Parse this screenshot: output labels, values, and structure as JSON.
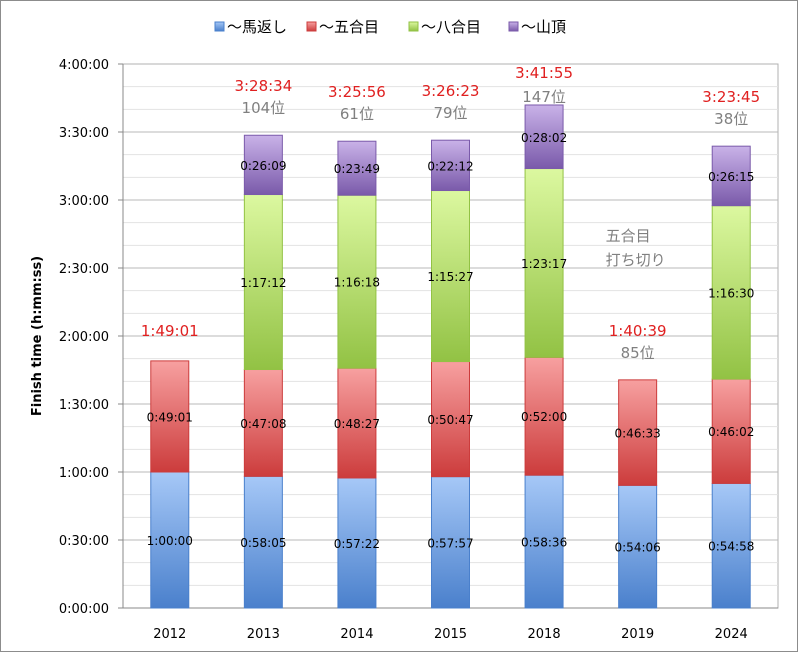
{
  "chart_data": {
    "type": "bar",
    "stacked": true,
    "ylabel": "Finish time (h:mm:ss)",
    "xlabel": "",
    "ylim_seconds": [
      0,
      14400
    ],
    "y_ticks": [
      "0:00:00",
      "0:30:00",
      "1:00:00",
      "1:30:00",
      "2:00:00",
      "2:30:00",
      "3:00:00",
      "3:30:00",
      "4:00:00"
    ],
    "grid": "major every 30 min, minor every 10 min",
    "legend_position": "top",
    "categories": [
      "2012",
      "2013",
      "2014",
      "2015",
      "2018",
      "2019",
      "2024"
    ],
    "series": [
      {
        "name": "～馬返し",
        "color": "#6f9fe0",
        "labels": [
          "1:00:00",
          "0:58:05",
          "0:57:22",
          "0:57:57",
          "0:58:36",
          "0:54:06",
          "0:54:58"
        ]
      },
      {
        "name": "～五合目",
        "color": "#e86a6a",
        "labels": [
          "0:49:01",
          "0:47:08",
          "0:48:27",
          "0:50:47",
          "0:52:00",
          "0:46:33",
          "0:46:02"
        ]
      },
      {
        "name": "～八合目",
        "color": "#bfe67a",
        "labels": [
          null,
          "1:17:12",
          "1:16:18",
          "1:15:27",
          "1:23:17",
          null,
          "1:16:30"
        ]
      },
      {
        "name": "～山頂",
        "color": "#a58ad0",
        "labels": [
          null,
          "0:26:09",
          "0:23:49",
          "0:22:12",
          "0:28:02",
          null,
          "0:26:15"
        ]
      }
    ],
    "totals": [
      "1:49:01",
      "3:28:34",
      "3:25:56",
      "3:26:23",
      "3:41:55",
      "1:40:39",
      "3:23:45"
    ],
    "ranks": [
      null,
      "104位",
      "61位",
      "79位",
      "147位",
      "85位",
      "38位"
    ],
    "annotations": [
      {
        "category": "2019",
        "lines": [
          "五合目",
          "打ち切り"
        ]
      }
    ],
    "total_color": "#e02020",
    "rank_color": "#808080"
  }
}
